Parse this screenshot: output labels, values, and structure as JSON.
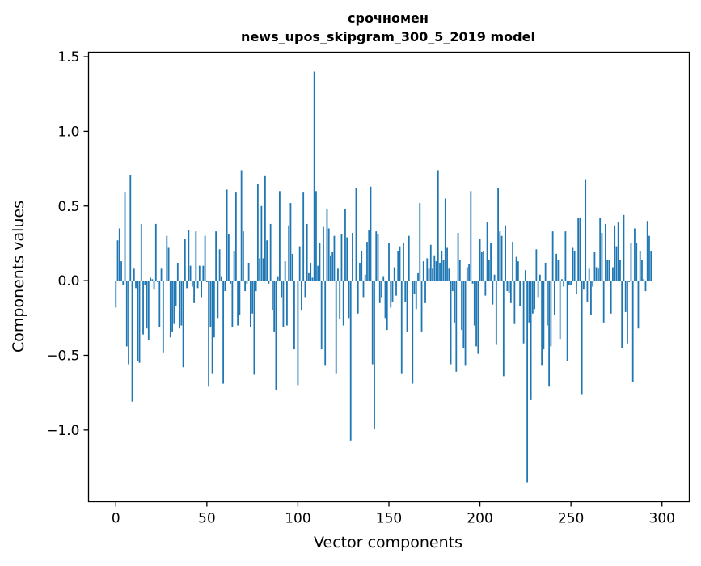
{
  "chart_data": {
    "type": "bar",
    "title": "срочномен",
    "subtitle": "news_upos_skipgram_300_5_2019 model",
    "xlabel": "Vector components",
    "ylabel": "Components values",
    "xlim": [
      -15,
      315
    ],
    "ylim": [
      -1.48,
      1.53
    ],
    "xticks": [
      0,
      50,
      100,
      150,
      200,
      250,
      300
    ],
    "yticks": [
      -1.0,
      -0.5,
      0.0,
      0.5,
      1.0,
      1.5
    ],
    "ytick_labels": [
      "−1.0",
      "−0.5",
      "0.0",
      "0.5",
      "1.0",
      "1.5"
    ],
    "grid": false,
    "bar_color": "#1f77b4",
    "values": [
      -0.18,
      0.27,
      0.35,
      0.13,
      -0.03,
      0.59,
      -0.44,
      -0.56,
      0.71,
      -0.81,
      0.08,
      -0.05,
      -0.54,
      -0.55,
      0.38,
      -0.36,
      -0.03,
      -0.32,
      -0.4,
      0.02,
      0.01,
      -0.06,
      0.38,
      -0.01,
      -0.31,
      0.08,
      -0.48,
      0.0,
      0.3,
      0.22,
      -0.38,
      -0.34,
      -0.29,
      -0.17,
      0.12,
      -0.32,
      -0.3,
      -0.58,
      0.28,
      -0.05,
      0.34,
      0.1,
      -0.04,
      -0.15,
      0.33,
      -0.05,
      0.1,
      -0.11,
      0.1,
      0.3,
      -0.01,
      -0.71,
      -0.31,
      -0.62,
      -0.38,
      0.33,
      -0.25,
      0.21,
      0.03,
      -0.69,
      -0.07,
      0.61,
      0.31,
      -0.02,
      -0.31,
      0.2,
      0.59,
      -0.3,
      -0.23,
      0.74,
      0.33,
      -0.07,
      -0.02,
      0.12,
      -0.31,
      -0.22,
      -0.63,
      -0.07,
      0.65,
      0.15,
      0.5,
      0.15,
      0.7,
      0.27,
      -0.02,
      0.38,
      -0.2,
      -0.34,
      -0.73,
      0.03,
      0.6,
      -0.11,
      -0.31,
      0.13,
      -0.3,
      0.37,
      0.52,
      0.18,
      -0.46,
      0.0,
      -0.7,
      0.23,
      -0.2,
      0.59,
      -0.11,
      0.38,
      0.05,
      0.12,
      0.02,
      1.4,
      0.6,
      0.1,
      0.25,
      -0.46,
      0.36,
      -0.57,
      0.48,
      0.35,
      0.17,
      0.19,
      0.3,
      -0.62,
      0.08,
      -0.26,
      0.31,
      -0.3,
      0.48,
      0.29,
      -0.25,
      -1.07,
      0.32,
      0.0,
      0.62,
      -0.22,
      0.12,
      0.2,
      -0.11,
      0.04,
      0.26,
      0.34,
      0.63,
      -0.56,
      -0.99,
      0.33,
      0.31,
      -0.15,
      -0.11,
      0.03,
      -0.25,
      -0.33,
      0.25,
      -0.18,
      -0.14,
      0.09,
      -0.1,
      0.2,
      0.23,
      -0.62,
      0.25,
      -0.14,
      -0.34,
      0.3,
      0.0,
      -0.69,
      -0.09,
      -0.19,
      0.05,
      0.52,
      -0.34,
      0.13,
      -0.15,
      0.15,
      0.08,
      0.24,
      0.08,
      0.17,
      0.13,
      0.74,
      0.12,
      0.2,
      0.14,
      0.55,
      0.22,
      0.08,
      -0.56,
      -0.07,
      -0.28,
      -0.61,
      0.32,
      0.14,
      -0.33,
      -0.45,
      -0.57,
      0.09,
      0.11,
      0.6,
      -0.02,
      -0.3,
      -0.44,
      -0.49,
      0.28,
      0.19,
      0.2,
      -0.1,
      0.39,
      0.14,
      0.25,
      -0.16,
      0.04,
      -0.43,
      0.62,
      0.33,
      0.3,
      -0.64,
      0.37,
      -0.07,
      -0.08,
      -0.15,
      0.26,
      -0.29,
      0.16,
      0.13,
      -0.17,
      0.0,
      -0.42,
      0.07,
      -1.35,
      -0.28,
      -0.8,
      -0.22,
      -0.19,
      0.21,
      -0.11,
      0.04,
      -0.57,
      -0.46,
      0.12,
      -0.3,
      -0.71,
      -0.44,
      0.33,
      -0.23,
      0.18,
      0.14,
      -0.39,
      0.01,
      -0.04,
      0.33,
      -0.54,
      -0.03,
      -0.03,
      0.22,
      0.2,
      -0.09,
      0.42,
      0.42,
      -0.76,
      -0.06,
      0.68,
      -0.14,
      0.08,
      -0.23,
      -0.04,
      0.19,
      0.09,
      0.08,
      0.42,
      0.32,
      -0.28,
      0.38,
      0.14,
      0.14,
      -0.22,
      0.09,
      0.37,
      0.23,
      0.39,
      0.14,
      -0.45,
      0.44,
      -0.21,
      -0.42,
      -0.01,
      0.25,
      -0.68,
      0.35,
      0.25,
      -0.32,
      0.2,
      0.14,
      0.01,
      -0.07,
      0.4,
      0.3,
      0.2,
      0.0
    ]
  }
}
